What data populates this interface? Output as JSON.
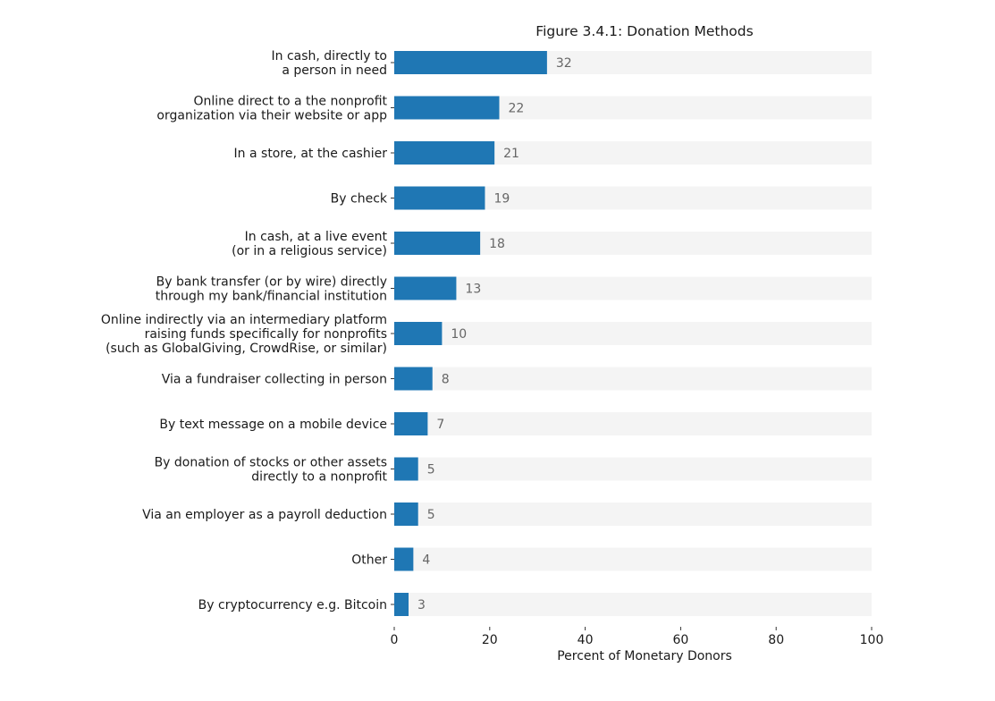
{
  "chart_data": {
    "type": "bar",
    "orientation": "horizontal",
    "title": "Figure 3.4.1: Donation Methods",
    "xlabel": "Percent of Monetary Donors",
    "ylabel": "",
    "xlim": [
      0,
      100
    ],
    "xticks": [
      0,
      20,
      40,
      60,
      80,
      100
    ],
    "grid": false,
    "categories": [
      [
        "In cash, directly to",
        "a person in need"
      ],
      [
        "Online direct to a the nonprofit",
        "organization via their website or app"
      ],
      [
        "In a store, at the cashier"
      ],
      [
        "By check"
      ],
      [
        "In cash, at a live event",
        "(or in a religious service)"
      ],
      [
        "By bank transfer (or by wire) directly",
        "through my bank/financial institution"
      ],
      [
        "Online indirectly via an intermediary platform",
        "raising funds specifically for nonprofits",
        "(such as GlobalGiving, CrowdRise, or similar)"
      ],
      [
        "Via a fundraiser collecting in person"
      ],
      [
        "By text message on a mobile device"
      ],
      [
        "By donation of stocks or other assets",
        "directly to a nonprofit"
      ],
      [
        "Via an employer as a payroll deduction"
      ],
      [
        "Other"
      ],
      [
        "By cryptocurrency e.g. Bitcoin"
      ]
    ],
    "values": [
      32,
      22,
      21,
      19,
      18,
      13,
      10,
      8,
      7,
      5,
      5,
      4,
      3
    ],
    "colors": {
      "bar": "#1f77b4",
      "background_bar": "#f4f4f4",
      "value_label": "#666666",
      "text": "#1a1a1a"
    }
  }
}
